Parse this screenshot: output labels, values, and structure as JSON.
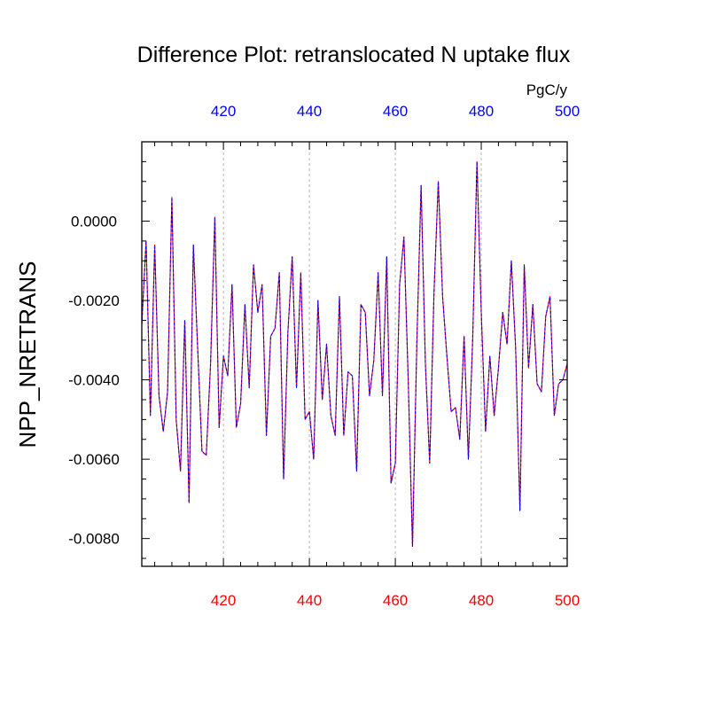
{
  "chart_data": {
    "type": "line",
    "title": "Difference Plot: retranslocated N uptake flux",
    "units_label": "PgC/y",
    "ylabel": "NPP_NRETRANS",
    "xlabel": "",
    "xlim": [
      401,
      500
    ],
    "ylim": [
      -0.0087,
      0.002
    ],
    "x_ticks": [
      420,
      440,
      460,
      480,
      500
    ],
    "x_tick_labels": [
      "420",
      "440",
      "460",
      "480",
      "500"
    ],
    "y_ticks": [
      0.0,
      -0.002,
      -0.004,
      -0.006,
      -0.008
    ],
    "y_tick_labels": [
      "0.0000",
      "-0.0020",
      "-0.0040",
      "-0.0060",
      "-0.0080"
    ],
    "top_axis_color": "#0000ff",
    "bottom_axis_color": "#ff0000",
    "vertical_grid": true,
    "grid_color": "#b4b4b4",
    "series": [
      {
        "color": "#ff0000",
        "style": "solid",
        "x": [
          401,
          402,
          403,
          404,
          405,
          406,
          407,
          408,
          409,
          410,
          411,
          412,
          413,
          414,
          415,
          416,
          417,
          418,
          419,
          420,
          421,
          422,
          423,
          424,
          425,
          426,
          427,
          428,
          429,
          430,
          431,
          432,
          433,
          434,
          435,
          436,
          437,
          438,
          439,
          440,
          441,
          442,
          443,
          444,
          445,
          446,
          447,
          448,
          449,
          450,
          451,
          452,
          453,
          454,
          455,
          456,
          457,
          458,
          459,
          460,
          461,
          462,
          463,
          464,
          465,
          466,
          467,
          468,
          469,
          470,
          471,
          472,
          473,
          474,
          475,
          476,
          477,
          478,
          479,
          480,
          481,
          482,
          483,
          484,
          485,
          486,
          487,
          488,
          489,
          490,
          491,
          492,
          493,
          494,
          495,
          496,
          497,
          498,
          499,
          500
        ],
        "y": [
          -0.0026,
          -0.0005,
          -0.0049,
          -0.0006,
          -0.0044,
          -0.0053,
          -0.0043,
          0.0006,
          -0.005,
          -0.0063,
          -0.0025,
          -0.0071,
          -0.0006,
          -0.0032,
          -0.0058,
          -0.0059,
          -0.0036,
          0.0001,
          -0.0052,
          -0.0034,
          -0.0039,
          -0.0016,
          -0.0052,
          -0.0046,
          -0.0021,
          -0.0042,
          -0.0011,
          -0.0023,
          -0.0016,
          -0.0054,
          -0.0029,
          -0.0027,
          -0.0013,
          -0.0065,
          -0.0028,
          -0.0009,
          -0.0042,
          -0.0013,
          -0.005,
          -0.0048,
          -0.006,
          -0.002,
          -0.0045,
          -0.0031,
          -0.0049,
          -0.0054,
          -0.0019,
          -0.0054,
          -0.0038,
          -0.0039,
          -0.0063,
          -0.0021,
          -0.0023,
          -0.0044,
          -0.0035,
          -0.0013,
          -0.0044,
          -0.0009,
          -0.0066,
          -0.0061,
          -0.0016,
          -0.0004,
          -0.004,
          -0.0082,
          -0.0031,
          0.0009,
          -0.0036,
          -0.0061,
          -0.0018,
          0.001,
          -0.0019,
          -0.0034,
          -0.0048,
          -0.0047,
          -0.0055,
          -0.0029,
          -0.006,
          -0.003,
          0.0015,
          -0.0023,
          -0.0053,
          -0.0034,
          -0.0049,
          -0.0037,
          -0.0023,
          -0.0031,
          -0.001,
          -0.0032,
          -0.0073,
          -0.0011,
          -0.0037,
          -0.0021,
          -0.0041,
          -0.0043,
          -0.0024,
          -0.0019,
          -0.0049,
          -0.0041,
          -0.004,
          -0.0036
        ]
      },
      {
        "color": "#0000ff",
        "style": "dashed",
        "x": [
          401,
          402,
          403,
          404,
          405,
          406,
          407,
          408,
          409,
          410,
          411,
          412,
          413,
          414,
          415,
          416,
          417,
          418,
          419,
          420,
          421,
          422,
          423,
          424,
          425,
          426,
          427,
          428,
          429,
          430,
          431,
          432,
          433,
          434,
          435,
          436,
          437,
          438,
          439,
          440,
          441,
          442,
          443,
          444,
          445,
          446,
          447,
          448,
          449,
          450,
          451,
          452,
          453,
          454,
          455,
          456,
          457,
          458,
          459,
          460,
          461,
          462,
          463,
          464,
          465,
          466,
          467,
          468,
          469,
          470,
          471,
          472,
          473,
          474,
          475,
          476,
          477,
          478,
          479,
          480,
          481,
          482,
          483,
          484,
          485,
          486,
          487,
          488,
          489,
          490,
          491,
          492,
          493,
          494,
          495,
          496,
          497,
          498,
          499,
          500
        ],
        "y": [
          -0.0026,
          -0.0005,
          -0.0049,
          -0.0006,
          -0.0044,
          -0.0053,
          -0.0043,
          0.0006,
          -0.005,
          -0.0063,
          -0.0025,
          -0.0071,
          -0.0006,
          -0.0032,
          -0.0058,
          -0.0059,
          -0.0036,
          0.0001,
          -0.0052,
          -0.0034,
          -0.0039,
          -0.0016,
          -0.0052,
          -0.0046,
          -0.0021,
          -0.0042,
          -0.0011,
          -0.0023,
          -0.0016,
          -0.0054,
          -0.0029,
          -0.0027,
          -0.0013,
          -0.0065,
          -0.0028,
          -0.0009,
          -0.0042,
          -0.0013,
          -0.005,
          -0.0048,
          -0.006,
          -0.002,
          -0.0045,
          -0.0031,
          -0.0049,
          -0.0054,
          -0.0019,
          -0.0054,
          -0.0038,
          -0.0039,
          -0.0063,
          -0.0021,
          -0.0023,
          -0.0044,
          -0.0035,
          -0.0013,
          -0.0044,
          -0.0009,
          -0.0066,
          -0.0061,
          -0.0016,
          -0.0004,
          -0.004,
          -0.0082,
          -0.0031,
          0.0009,
          -0.0036,
          -0.0061,
          -0.0018,
          0.001,
          -0.0019,
          -0.0034,
          -0.0048,
          -0.0047,
          -0.0055,
          -0.0029,
          -0.006,
          -0.003,
          0.0015,
          -0.0023,
          -0.0053,
          -0.0034,
          -0.0049,
          -0.0037,
          -0.0023,
          -0.0031,
          -0.001,
          -0.0032,
          -0.0073,
          -0.0011,
          -0.0037,
          -0.0021,
          -0.0041,
          -0.0043,
          -0.0024,
          -0.0019,
          -0.0049,
          -0.0041,
          -0.004,
          -0.0036
        ]
      }
    ]
  }
}
